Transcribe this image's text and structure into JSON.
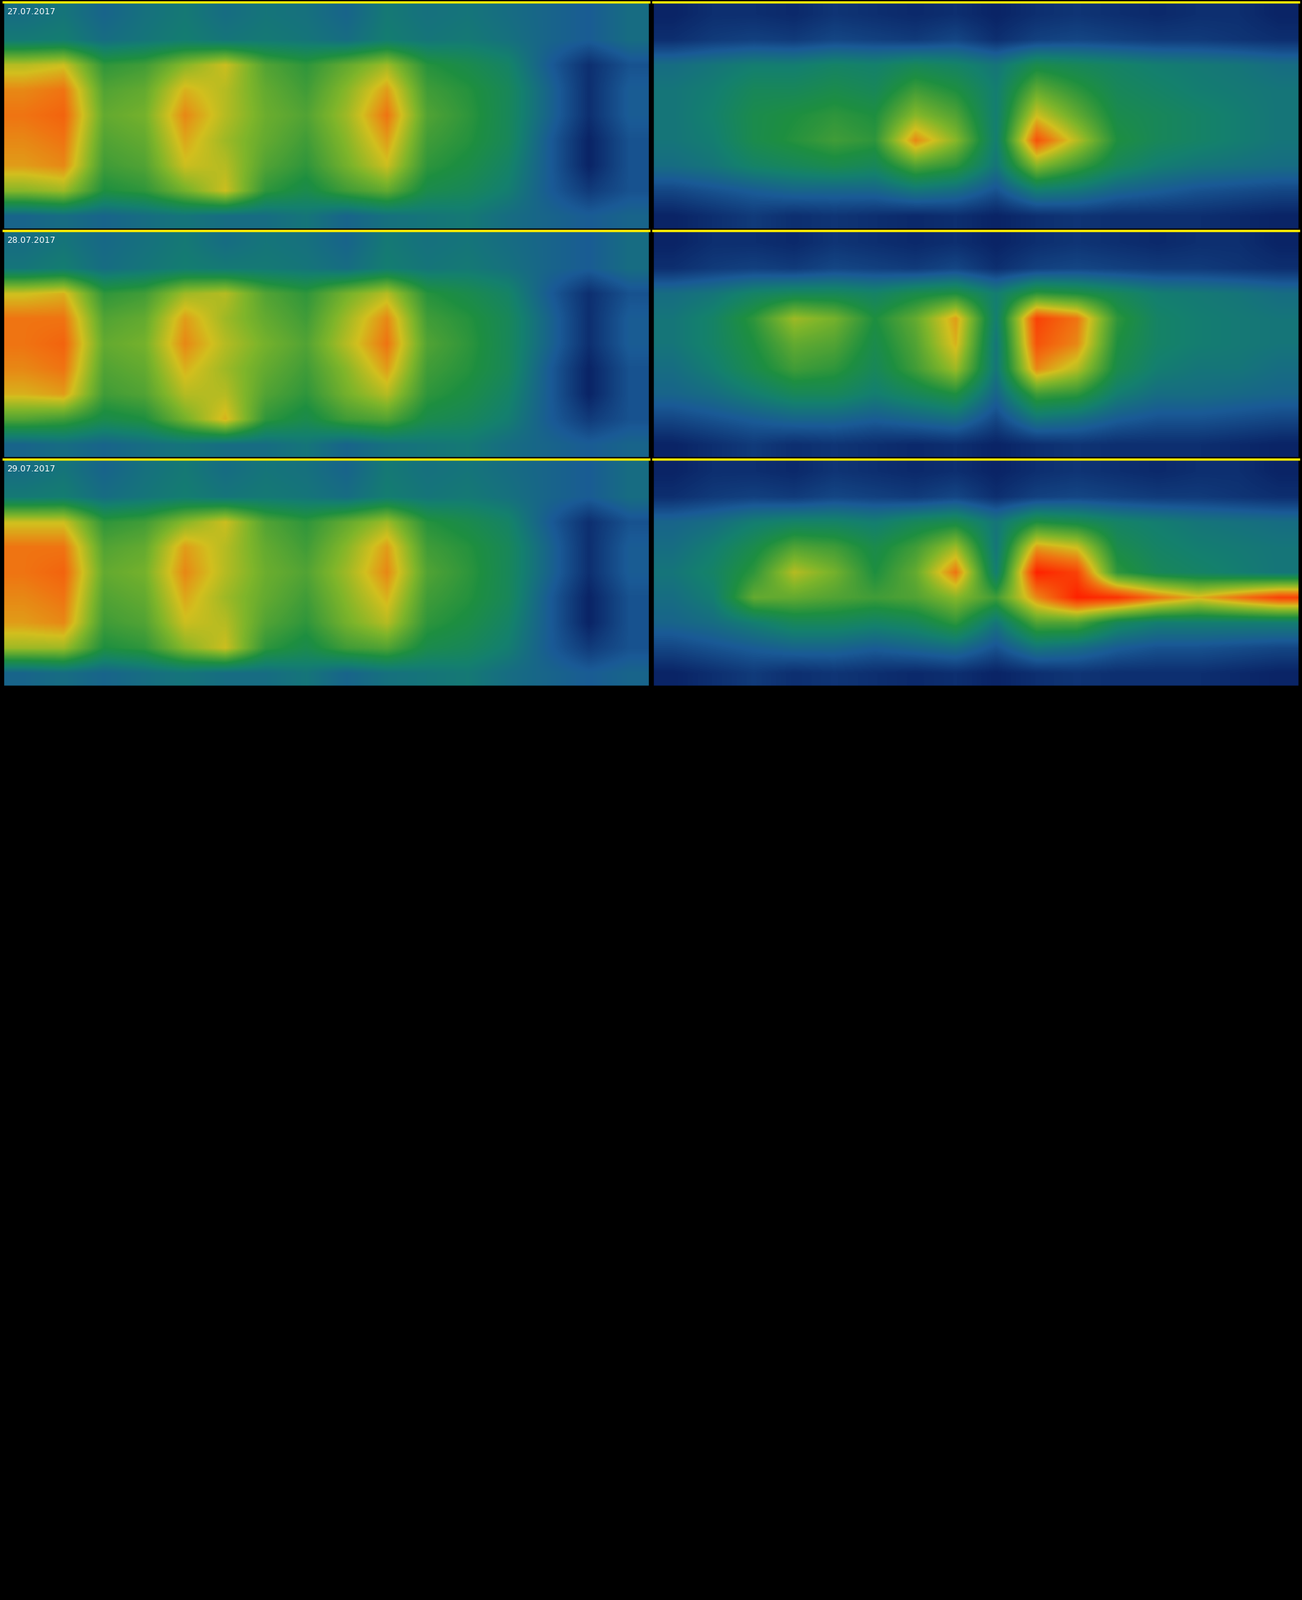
{
  "chart_data": [
    {
      "type": "heatmap",
      "title": "27.07.2017",
      "tick_labels": false,
      "cells": [
        [
          0.42,
          0.44,
          0.4,
          0.43,
          0.45,
          0.42,
          0.44,
          0.43,
          0.4,
          0.45,
          0.43,
          0.44,
          0.42,
          0.4,
          0.38,
          0.42
        ],
        [
          0.45,
          0.46,
          0.42,
          0.44,
          0.46,
          0.44,
          0.45,
          0.44,
          0.42,
          0.46,
          0.44,
          0.45,
          0.43,
          0.4,
          0.38,
          0.42
        ],
        [
          0.7,
          0.72,
          0.56,
          0.58,
          0.66,
          0.72,
          0.6,
          0.56,
          0.62,
          0.68,
          0.55,
          0.52,
          0.48,
          0.38,
          0.3,
          0.36
        ],
        [
          0.78,
          0.8,
          0.6,
          0.62,
          0.74,
          0.7,
          0.62,
          0.58,
          0.66,
          0.76,
          0.58,
          0.55,
          0.5,
          0.4,
          0.3,
          0.38
        ],
        [
          0.8,
          0.82,
          0.62,
          0.64,
          0.78,
          0.7,
          0.63,
          0.6,
          0.68,
          0.8,
          0.6,
          0.56,
          0.5,
          0.4,
          0.3,
          0.38
        ],
        [
          0.78,
          0.8,
          0.6,
          0.62,
          0.75,
          0.68,
          0.62,
          0.58,
          0.66,
          0.76,
          0.58,
          0.55,
          0.5,
          0.38,
          0.28,
          0.36
        ],
        [
          0.76,
          0.78,
          0.58,
          0.6,
          0.72,
          0.7,
          0.6,
          0.56,
          0.64,
          0.72,
          0.56,
          0.53,
          0.48,
          0.38,
          0.28,
          0.36
        ],
        [
          0.66,
          0.68,
          0.54,
          0.56,
          0.64,
          0.72,
          0.56,
          0.52,
          0.58,
          0.62,
          0.52,
          0.5,
          0.46,
          0.38,
          0.32,
          0.36
        ],
        [
          0.4,
          0.42,
          0.4,
          0.42,
          0.44,
          0.42,
          0.42,
          0.44,
          0.4,
          0.43,
          0.44,
          0.45,
          0.42,
          0.4,
          0.38,
          0.4
        ]
      ]
    },
    {
      "type": "heatmap",
      "tick_labels": false,
      "cells": [
        [
          0.28,
          0.3,
          0.3,
          0.29,
          0.31,
          0.3,
          0.29,
          0.3,
          0.28,
          0.3,
          0.31,
          0.3,
          0.29,
          0.3,
          0.3,
          0.28
        ],
        [
          0.3,
          0.32,
          0.33,
          0.32,
          0.34,
          0.33,
          0.32,
          0.34,
          0.3,
          0.33,
          0.34,
          0.33,
          0.32,
          0.32,
          0.31,
          0.3
        ],
        [
          0.42,
          0.44,
          0.46,
          0.46,
          0.48,
          0.47,
          0.5,
          0.48,
          0.44,
          0.52,
          0.5,
          0.48,
          0.46,
          0.45,
          0.44,
          0.42
        ],
        [
          0.44,
          0.46,
          0.5,
          0.5,
          0.52,
          0.5,
          0.58,
          0.54,
          0.46,
          0.62,
          0.56,
          0.5,
          0.48,
          0.46,
          0.45,
          0.44
        ],
        [
          0.44,
          0.47,
          0.52,
          0.54,
          0.56,
          0.54,
          0.66,
          0.6,
          0.46,
          0.72,
          0.62,
          0.52,
          0.5,
          0.48,
          0.46,
          0.44
        ],
        [
          0.44,
          0.46,
          0.52,
          0.55,
          0.58,
          0.56,
          0.78,
          0.66,
          0.46,
          0.84,
          0.7,
          0.54,
          0.5,
          0.48,
          0.46,
          0.44
        ],
        [
          0.42,
          0.44,
          0.48,
          0.5,
          0.52,
          0.5,
          0.6,
          0.56,
          0.44,
          0.66,
          0.58,
          0.5,
          0.46,
          0.44,
          0.43,
          0.42
        ],
        [
          0.34,
          0.36,
          0.38,
          0.4,
          0.4,
          0.4,
          0.44,
          0.42,
          0.36,
          0.46,
          0.44,
          0.4,
          0.38,
          0.36,
          0.35,
          0.34
        ],
        [
          0.28,
          0.3,
          0.32,
          0.3,
          0.31,
          0.3,
          0.29,
          0.3,
          0.28,
          0.3,
          0.31,
          0.3,
          0.3,
          0.3,
          0.29,
          0.28
        ]
      ]
    },
    {
      "type": "heatmap",
      "title": "28.07.2017",
      "tick_labels": false,
      "cells": [
        [
          0.42,
          0.44,
          0.41,
          0.43,
          0.45,
          0.42,
          0.44,
          0.43,
          0.4,
          0.45,
          0.43,
          0.44,
          0.42,
          0.4,
          0.38,
          0.42
        ],
        [
          0.44,
          0.46,
          0.42,
          0.44,
          0.46,
          0.45,
          0.45,
          0.44,
          0.42,
          0.46,
          0.44,
          0.45,
          0.43,
          0.4,
          0.38,
          0.42
        ],
        [
          0.72,
          0.74,
          0.56,
          0.58,
          0.68,
          0.7,
          0.6,
          0.56,
          0.64,
          0.7,
          0.55,
          0.52,
          0.48,
          0.38,
          0.3,
          0.36
        ],
        [
          0.8,
          0.8,
          0.6,
          0.62,
          0.76,
          0.68,
          0.62,
          0.58,
          0.68,
          0.78,
          0.58,
          0.55,
          0.5,
          0.4,
          0.3,
          0.38
        ],
        [
          0.8,
          0.82,
          0.62,
          0.64,
          0.78,
          0.7,
          0.64,
          0.6,
          0.7,
          0.8,
          0.6,
          0.56,
          0.5,
          0.4,
          0.3,
          0.38
        ],
        [
          0.78,
          0.8,
          0.6,
          0.62,
          0.74,
          0.68,
          0.62,
          0.58,
          0.66,
          0.76,
          0.58,
          0.55,
          0.5,
          0.38,
          0.28,
          0.36
        ],
        [
          0.74,
          0.76,
          0.58,
          0.6,
          0.7,
          0.7,
          0.6,
          0.56,
          0.64,
          0.7,
          0.56,
          0.53,
          0.48,
          0.38,
          0.28,
          0.36
        ],
        [
          0.6,
          0.58,
          0.52,
          0.54,
          0.64,
          0.74,
          0.56,
          0.52,
          0.58,
          0.6,
          0.52,
          0.5,
          0.46,
          0.38,
          0.32,
          0.36
        ],
        [
          0.4,
          0.42,
          0.4,
          0.42,
          0.44,
          0.42,
          0.42,
          0.44,
          0.4,
          0.43,
          0.44,
          0.45,
          0.42,
          0.4,
          0.38,
          0.4
        ]
      ]
    },
    {
      "type": "heatmap",
      "tick_labels": false,
      "cells": [
        [
          0.28,
          0.3,
          0.3,
          0.29,
          0.31,
          0.3,
          0.29,
          0.3,
          0.28,
          0.3,
          0.31,
          0.3,
          0.29,
          0.3,
          0.3,
          0.28
        ],
        [
          0.3,
          0.32,
          0.33,
          0.32,
          0.34,
          0.33,
          0.32,
          0.34,
          0.3,
          0.33,
          0.34,
          0.33,
          0.32,
          0.32,
          0.31,
          0.3
        ],
        [
          0.42,
          0.44,
          0.48,
          0.5,
          0.5,
          0.48,
          0.52,
          0.54,
          0.46,
          0.56,
          0.54,
          0.5,
          0.46,
          0.45,
          0.44,
          0.42
        ],
        [
          0.44,
          0.48,
          0.56,
          0.68,
          0.64,
          0.54,
          0.62,
          0.76,
          0.46,
          0.86,
          0.8,
          0.56,
          0.48,
          0.46,
          0.45,
          0.44
        ],
        [
          0.44,
          0.48,
          0.54,
          0.62,
          0.6,
          0.52,
          0.6,
          0.74,
          0.44,
          0.84,
          0.78,
          0.54,
          0.48,
          0.46,
          0.45,
          0.44
        ],
        [
          0.42,
          0.46,
          0.52,
          0.58,
          0.56,
          0.5,
          0.58,
          0.68,
          0.44,
          0.78,
          0.7,
          0.52,
          0.46,
          0.44,
          0.44,
          0.42
        ],
        [
          0.4,
          0.42,
          0.46,
          0.5,
          0.5,
          0.46,
          0.5,
          0.54,
          0.4,
          0.58,
          0.56,
          0.46,
          0.42,
          0.42,
          0.41,
          0.4
        ],
        [
          0.34,
          0.36,
          0.38,
          0.4,
          0.4,
          0.38,
          0.4,
          0.42,
          0.34,
          0.44,
          0.42,
          0.38,
          0.36,
          0.36,
          0.35,
          0.34
        ],
        [
          0.28,
          0.3,
          0.32,
          0.3,
          0.31,
          0.3,
          0.29,
          0.3,
          0.28,
          0.3,
          0.31,
          0.3,
          0.3,
          0.3,
          0.29,
          0.28
        ]
      ]
    },
    {
      "type": "heatmap",
      "title": "29.07.2017",
      "tick_labels": false,
      "cells": [
        [
          0.42,
          0.44,
          0.4,
          0.43,
          0.45,
          0.42,
          0.44,
          0.43,
          0.4,
          0.45,
          0.43,
          0.44,
          0.42,
          0.4,
          0.38,
          0.42
        ],
        [
          0.45,
          0.46,
          0.42,
          0.44,
          0.46,
          0.44,
          0.45,
          0.44,
          0.42,
          0.46,
          0.44,
          0.45,
          0.43,
          0.4,
          0.38,
          0.42
        ],
        [
          0.72,
          0.72,
          0.56,
          0.58,
          0.66,
          0.72,
          0.6,
          0.56,
          0.62,
          0.68,
          0.55,
          0.52,
          0.48,
          0.38,
          0.3,
          0.36
        ],
        [
          0.8,
          0.8,
          0.6,
          0.62,
          0.76,
          0.7,
          0.62,
          0.58,
          0.66,
          0.76,
          0.58,
          0.55,
          0.5,
          0.4,
          0.3,
          0.38
        ],
        [
          0.8,
          0.82,
          0.62,
          0.64,
          0.78,
          0.7,
          0.63,
          0.6,
          0.68,
          0.78,
          0.6,
          0.56,
          0.5,
          0.4,
          0.3,
          0.38
        ],
        [
          0.78,
          0.8,
          0.6,
          0.62,
          0.75,
          0.68,
          0.62,
          0.58,
          0.66,
          0.74,
          0.58,
          0.55,
          0.5,
          0.38,
          0.28,
          0.36
        ],
        [
          0.76,
          0.78,
          0.58,
          0.6,
          0.72,
          0.7,
          0.6,
          0.56,
          0.64,
          0.7,
          0.56,
          0.53,
          0.48,
          0.38,
          0.28,
          0.36
        ],
        [
          0.68,
          0.68,
          0.54,
          0.56,
          0.66,
          0.72,
          0.56,
          0.52,
          0.58,
          0.6,
          0.52,
          0.5,
          0.46,
          0.38,
          0.32,
          0.36
        ],
        [
          0.4,
          0.42,
          0.4,
          0.42,
          0.44,
          0.42,
          0.42,
          0.44,
          0.4,
          0.43,
          0.44,
          0.45,
          0.42,
          0.4,
          0.38,
          0.4
        ]
      ]
    },
    {
      "type": "heatmap",
      "tick_labels": false,
      "cells": [
        [
          0.28,
          0.3,
          0.3,
          0.29,
          0.31,
          0.3,
          0.29,
          0.3,
          0.28,
          0.3,
          0.31,
          0.3,
          0.29,
          0.3,
          0.3,
          0.28
        ],
        [
          0.3,
          0.32,
          0.33,
          0.32,
          0.34,
          0.33,
          0.32,
          0.34,
          0.3,
          0.33,
          0.34,
          0.33,
          0.32,
          0.32,
          0.31,
          0.3
        ],
        [
          0.4,
          0.42,
          0.46,
          0.48,
          0.48,
          0.46,
          0.5,
          0.52,
          0.44,
          0.54,
          0.52,
          0.48,
          0.46,
          0.44,
          0.43,
          0.42
        ],
        [
          0.42,
          0.46,
          0.52,
          0.6,
          0.58,
          0.52,
          0.58,
          0.68,
          0.44,
          0.76,
          0.72,
          0.52,
          0.48,
          0.46,
          0.45,
          0.44
        ],
        [
          0.44,
          0.48,
          0.56,
          0.7,
          0.64,
          0.54,
          0.62,
          0.8,
          0.46,
          0.9,
          0.86,
          0.56,
          0.5,
          0.48,
          0.46,
          0.44
        ],
        [
          0.42,
          0.46,
          0.62,
          0.62,
          0.6,
          0.58,
          0.6,
          0.66,
          0.58,
          0.78,
          0.9,
          0.88,
          0.8,
          0.74,
          0.8,
          0.86
        ],
        [
          0.4,
          0.42,
          0.46,
          0.5,
          0.5,
          0.48,
          0.5,
          0.56,
          0.44,
          0.6,
          0.6,
          0.5,
          0.46,
          0.46,
          0.46,
          0.46
        ],
        [
          0.34,
          0.36,
          0.38,
          0.4,
          0.4,
          0.38,
          0.4,
          0.42,
          0.36,
          0.44,
          0.42,
          0.38,
          0.36,
          0.36,
          0.35,
          0.34
        ],
        [
          0.28,
          0.3,
          0.32,
          0.3,
          0.31,
          0.3,
          0.29,
          0.3,
          0.28,
          0.3,
          0.31,
          0.3,
          0.3,
          0.3,
          0.29,
          0.28
        ]
      ]
    }
  ]
}
